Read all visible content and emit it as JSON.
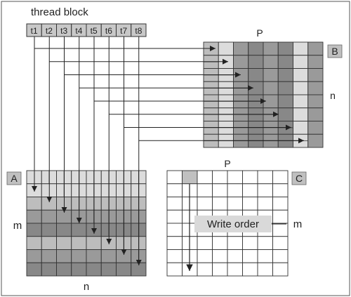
{
  "title": "thread block",
  "threads": [
    "t1",
    "t2",
    "t3",
    "t4",
    "t5",
    "t6",
    "t7",
    "t8"
  ],
  "matrix_A": {
    "tag": "A",
    "row_label": "m",
    "col_label": "n"
  },
  "matrix_B": {
    "tag": "B",
    "col_label": "P",
    "row_label": "n"
  },
  "matrix_C": {
    "tag": "C",
    "col_label": "P",
    "row_label": "m",
    "annotation": "Write order"
  },
  "colors": {
    "outline": "#333333",
    "thread_cell": "#c8c8c8",
    "highlight": "#c0c0c0",
    "write_order_box": "#d9d9d9",
    "gray_light": "#dcdcdc",
    "gray_mid": "#bdbdbd",
    "gray_dark": "#9a9a9a",
    "gray_darker": "#888888"
  }
}
